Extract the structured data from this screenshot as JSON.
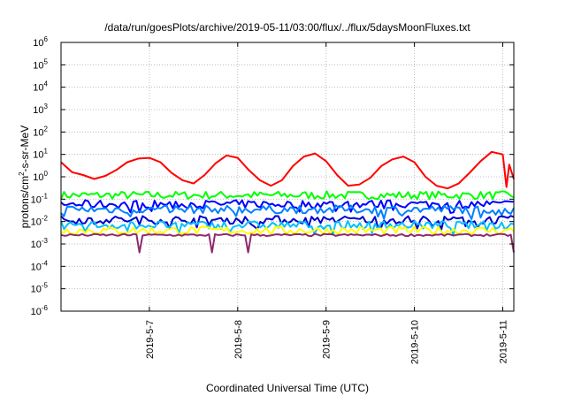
{
  "chart_data": {
    "type": "line",
    "title": "/data/run/goesPlots/archive/2019-05-11/03:00/flux/../flux/5daysMoonFluxes.txt",
    "xlabel": "Coordinated Universal Time (UTC)",
    "ylabel": "protons/cm2-s-sr-MeV",
    "ylabel_parts": {
      "before": "protons/cm",
      "sup": "2",
      "after": "-s-sr-MeV"
    },
    "y_scale": "log",
    "ylim": [
      1e-06,
      1000000.0
    ],
    "y_ticks": [
      {
        "base": "10",
        "exp": "-6",
        "value": 1e-06
      },
      {
        "base": "10",
        "exp": "-5",
        "value": 1e-05
      },
      {
        "base": "10",
        "exp": "-4",
        "value": 0.0001
      },
      {
        "base": "10",
        "exp": "-3",
        "value": 0.001
      },
      {
        "base": "10",
        "exp": "-2",
        "value": 0.01
      },
      {
        "base": "10",
        "exp": "-1",
        "value": 0.1
      },
      {
        "base": "10",
        "exp": "0",
        "value": 1
      },
      {
        "base": "10",
        "exp": "1",
        "value": 10
      },
      {
        "base": "10",
        "exp": "2",
        "value": 100
      },
      {
        "base": "10",
        "exp": "3",
        "value": 1000
      },
      {
        "base": "10",
        "exp": "4",
        "value": 10000
      },
      {
        "base": "10",
        "exp": "5",
        "value": 100000
      },
      {
        "base": "10",
        "exp": "6",
        "value": 1000000
      }
    ],
    "xlim": [
      "2019-05-06T00:00",
      "2019-05-11T03:00"
    ],
    "x_ticks": [
      {
        "label": "2019-5-7",
        "value": "2019-05-07"
      },
      {
        "label": "2019-5-8",
        "value": "2019-05-08"
      },
      {
        "label": "2019-5-9",
        "value": "2019-05-09"
      },
      {
        "label": "2019-5-10",
        "value": "2019-05-10"
      },
      {
        "label": "2019-5-11",
        "value": "2019-05-11"
      }
    ],
    "grid": true,
    "legend": "none",
    "series": [
      {
        "color": "#ff0000",
        "points": [
          [
            "2019-05-06T00:00",
            4.5
          ],
          [
            "2019-05-06T03:00",
            1.6
          ],
          [
            "2019-05-06T06:00",
            1.2
          ],
          [
            "2019-05-06T09:00",
            0.8
          ],
          [
            "2019-05-06T12:00",
            1.1
          ],
          [
            "2019-05-06T15:00",
            2.0
          ],
          [
            "2019-05-06T18:00",
            4.5
          ],
          [
            "2019-05-06T21:00",
            6.5
          ],
          [
            "2019-05-07T00:00",
            7.0
          ],
          [
            "2019-05-07T03:00",
            4.5
          ],
          [
            "2019-05-07T06:00",
            1.5
          ],
          [
            "2019-05-07T09:00",
            0.7
          ],
          [
            "2019-05-07T12:00",
            0.5
          ],
          [
            "2019-05-07T15:00",
            1.2
          ],
          [
            "2019-05-07T18:00",
            4.0
          ],
          [
            "2019-05-07T21:00",
            9.0
          ],
          [
            "2019-05-08T00:00",
            7.0
          ],
          [
            "2019-05-08T03:00",
            2.0
          ],
          [
            "2019-05-08T06:00",
            0.7
          ],
          [
            "2019-05-08T09:00",
            0.4
          ],
          [
            "2019-05-08T12:00",
            0.7
          ],
          [
            "2019-05-08T15:00",
            3.0
          ],
          [
            "2019-05-08T18:00",
            8.0
          ],
          [
            "2019-05-08T21:00",
            11.0
          ],
          [
            "2019-05-09T00:00",
            5.0
          ],
          [
            "2019-05-09T03:00",
            1.2
          ],
          [
            "2019-05-09T06:00",
            0.4
          ],
          [
            "2019-05-09T09:00",
            0.45
          ],
          [
            "2019-05-09T12:00",
            0.9
          ],
          [
            "2019-05-09T15:00",
            3.0
          ],
          [
            "2019-05-09T18:00",
            6.0
          ],
          [
            "2019-05-09T21:00",
            8.0
          ],
          [
            "2019-05-10T00:00",
            4.5
          ],
          [
            "2019-05-10T03:00",
            1.0
          ],
          [
            "2019-05-10T06:00",
            0.4
          ],
          [
            "2019-05-10T09:00",
            0.3
          ],
          [
            "2019-05-10T12:00",
            0.5
          ],
          [
            "2019-05-10T15:00",
            1.5
          ],
          [
            "2019-05-10T18:00",
            5.0
          ],
          [
            "2019-05-10T21:00",
            13.0
          ],
          [
            "2019-05-11T00:00",
            10.0
          ],
          [
            "2019-05-11T01:00",
            0.35
          ],
          [
            "2019-05-11T01:45",
            3.5
          ],
          [
            "2019-05-11T03:00",
            0.8
          ]
        ]
      },
      {
        "color": "#00ff00",
        "level": 0.15
      },
      {
        "color": "#0000ff",
        "level": 0.06
      },
      {
        "color": "#0080ff",
        "level": 0.035
      },
      {
        "color": "#0000cd",
        "level": 0.012
      },
      {
        "color": "#00bfff",
        "level": 0.007
      },
      {
        "color": "#ffff00",
        "level": 0.004
      },
      {
        "color": "#8b2a6e",
        "level": 0.0025
      }
    ]
  }
}
